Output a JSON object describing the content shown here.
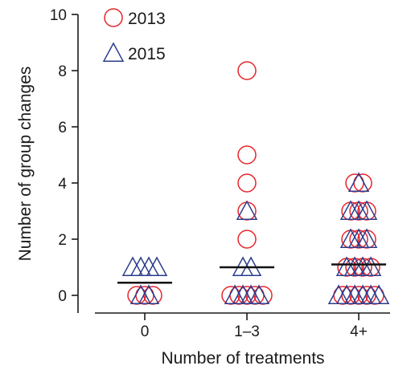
{
  "chart_data": {
    "type": "scatter",
    "xlabel": "Number of treatments",
    "ylabel": "Number of group changes",
    "categories": [
      "0",
      "1–3",
      "4+"
    ],
    "ylim": [
      -0.6,
      10
    ],
    "yticks": [
      0,
      2,
      4,
      6,
      8,
      10
    ],
    "legend_position": "top-left",
    "series": [
      {
        "name": "2013",
        "marker": "circle",
        "color": "#e8242b",
        "points": [
          {
            "x": "0",
            "y": 0
          },
          {
            "x": "0",
            "y": 0
          },
          {
            "x": "0",
            "y": 0
          },
          {
            "x": "1–3",
            "y": 8
          },
          {
            "x": "1–3",
            "y": 5
          },
          {
            "x": "1–3",
            "y": 4
          },
          {
            "x": "1–3",
            "y": 3
          },
          {
            "x": "1–3",
            "y": 2
          },
          {
            "x": "1–3",
            "y": 0
          },
          {
            "x": "1–3",
            "y": 0
          },
          {
            "x": "1–3",
            "y": 0
          },
          {
            "x": "1–3",
            "y": 0
          },
          {
            "x": "1–3",
            "y": 0
          },
          {
            "x": "4+",
            "y": 4
          },
          {
            "x": "4+",
            "y": 4
          },
          {
            "x": "4+",
            "y": 3
          },
          {
            "x": "4+",
            "y": 3
          },
          {
            "x": "4+",
            "y": 3
          },
          {
            "x": "4+",
            "y": 2
          },
          {
            "x": "4+",
            "y": 2
          },
          {
            "x": "4+",
            "y": 2
          },
          {
            "x": "4+",
            "y": 1
          },
          {
            "x": "4+",
            "y": 1
          },
          {
            "x": "4+",
            "y": 1
          },
          {
            "x": "4+",
            "y": 1
          },
          {
            "x": "4+",
            "y": 0
          },
          {
            "x": "4+",
            "y": 0
          },
          {
            "x": "4+",
            "y": 0
          },
          {
            "x": "4+",
            "y": 0
          },
          {
            "x": "4+",
            "y": 0
          }
        ]
      },
      {
        "name": "2015",
        "marker": "triangle",
        "color": "#2b3c8c",
        "points": [
          {
            "x": "0",
            "y": 1
          },
          {
            "x": "0",
            "y": 1
          },
          {
            "x": "0",
            "y": 1
          },
          {
            "x": "0",
            "y": 1
          },
          {
            "x": "0",
            "y": 0
          },
          {
            "x": "0",
            "y": 0
          },
          {
            "x": "1–3",
            "y": 3
          },
          {
            "x": "1–3",
            "y": 1
          },
          {
            "x": "1–3",
            "y": 1
          },
          {
            "x": "1–3",
            "y": 0
          },
          {
            "x": "1–3",
            "y": 0
          },
          {
            "x": "1–3",
            "y": 0
          },
          {
            "x": "1–3",
            "y": 0
          },
          {
            "x": "4+",
            "y": 4
          },
          {
            "x": "4+",
            "y": 3
          },
          {
            "x": "4+",
            "y": 3
          },
          {
            "x": "4+",
            "y": 3
          },
          {
            "x": "4+",
            "y": 2
          },
          {
            "x": "4+",
            "y": 2
          },
          {
            "x": "4+",
            "y": 2
          },
          {
            "x": "4+",
            "y": 1
          },
          {
            "x": "4+",
            "y": 1
          },
          {
            "x": "4+",
            "y": 1
          },
          {
            "x": "4+",
            "y": 1
          },
          {
            "x": "4+",
            "y": 0
          },
          {
            "x": "4+",
            "y": 0
          },
          {
            "x": "4+",
            "y": 0
          },
          {
            "x": "4+",
            "y": 0
          },
          {
            "x": "4+",
            "y": 0
          },
          {
            "x": "4+",
            "y": 0
          }
        ]
      }
    ],
    "medians": [
      {
        "x": "0",
        "y": 0.45
      },
      {
        "x": "1–3",
        "y": 1
      },
      {
        "x": "4+",
        "y": 1.1
      }
    ]
  }
}
